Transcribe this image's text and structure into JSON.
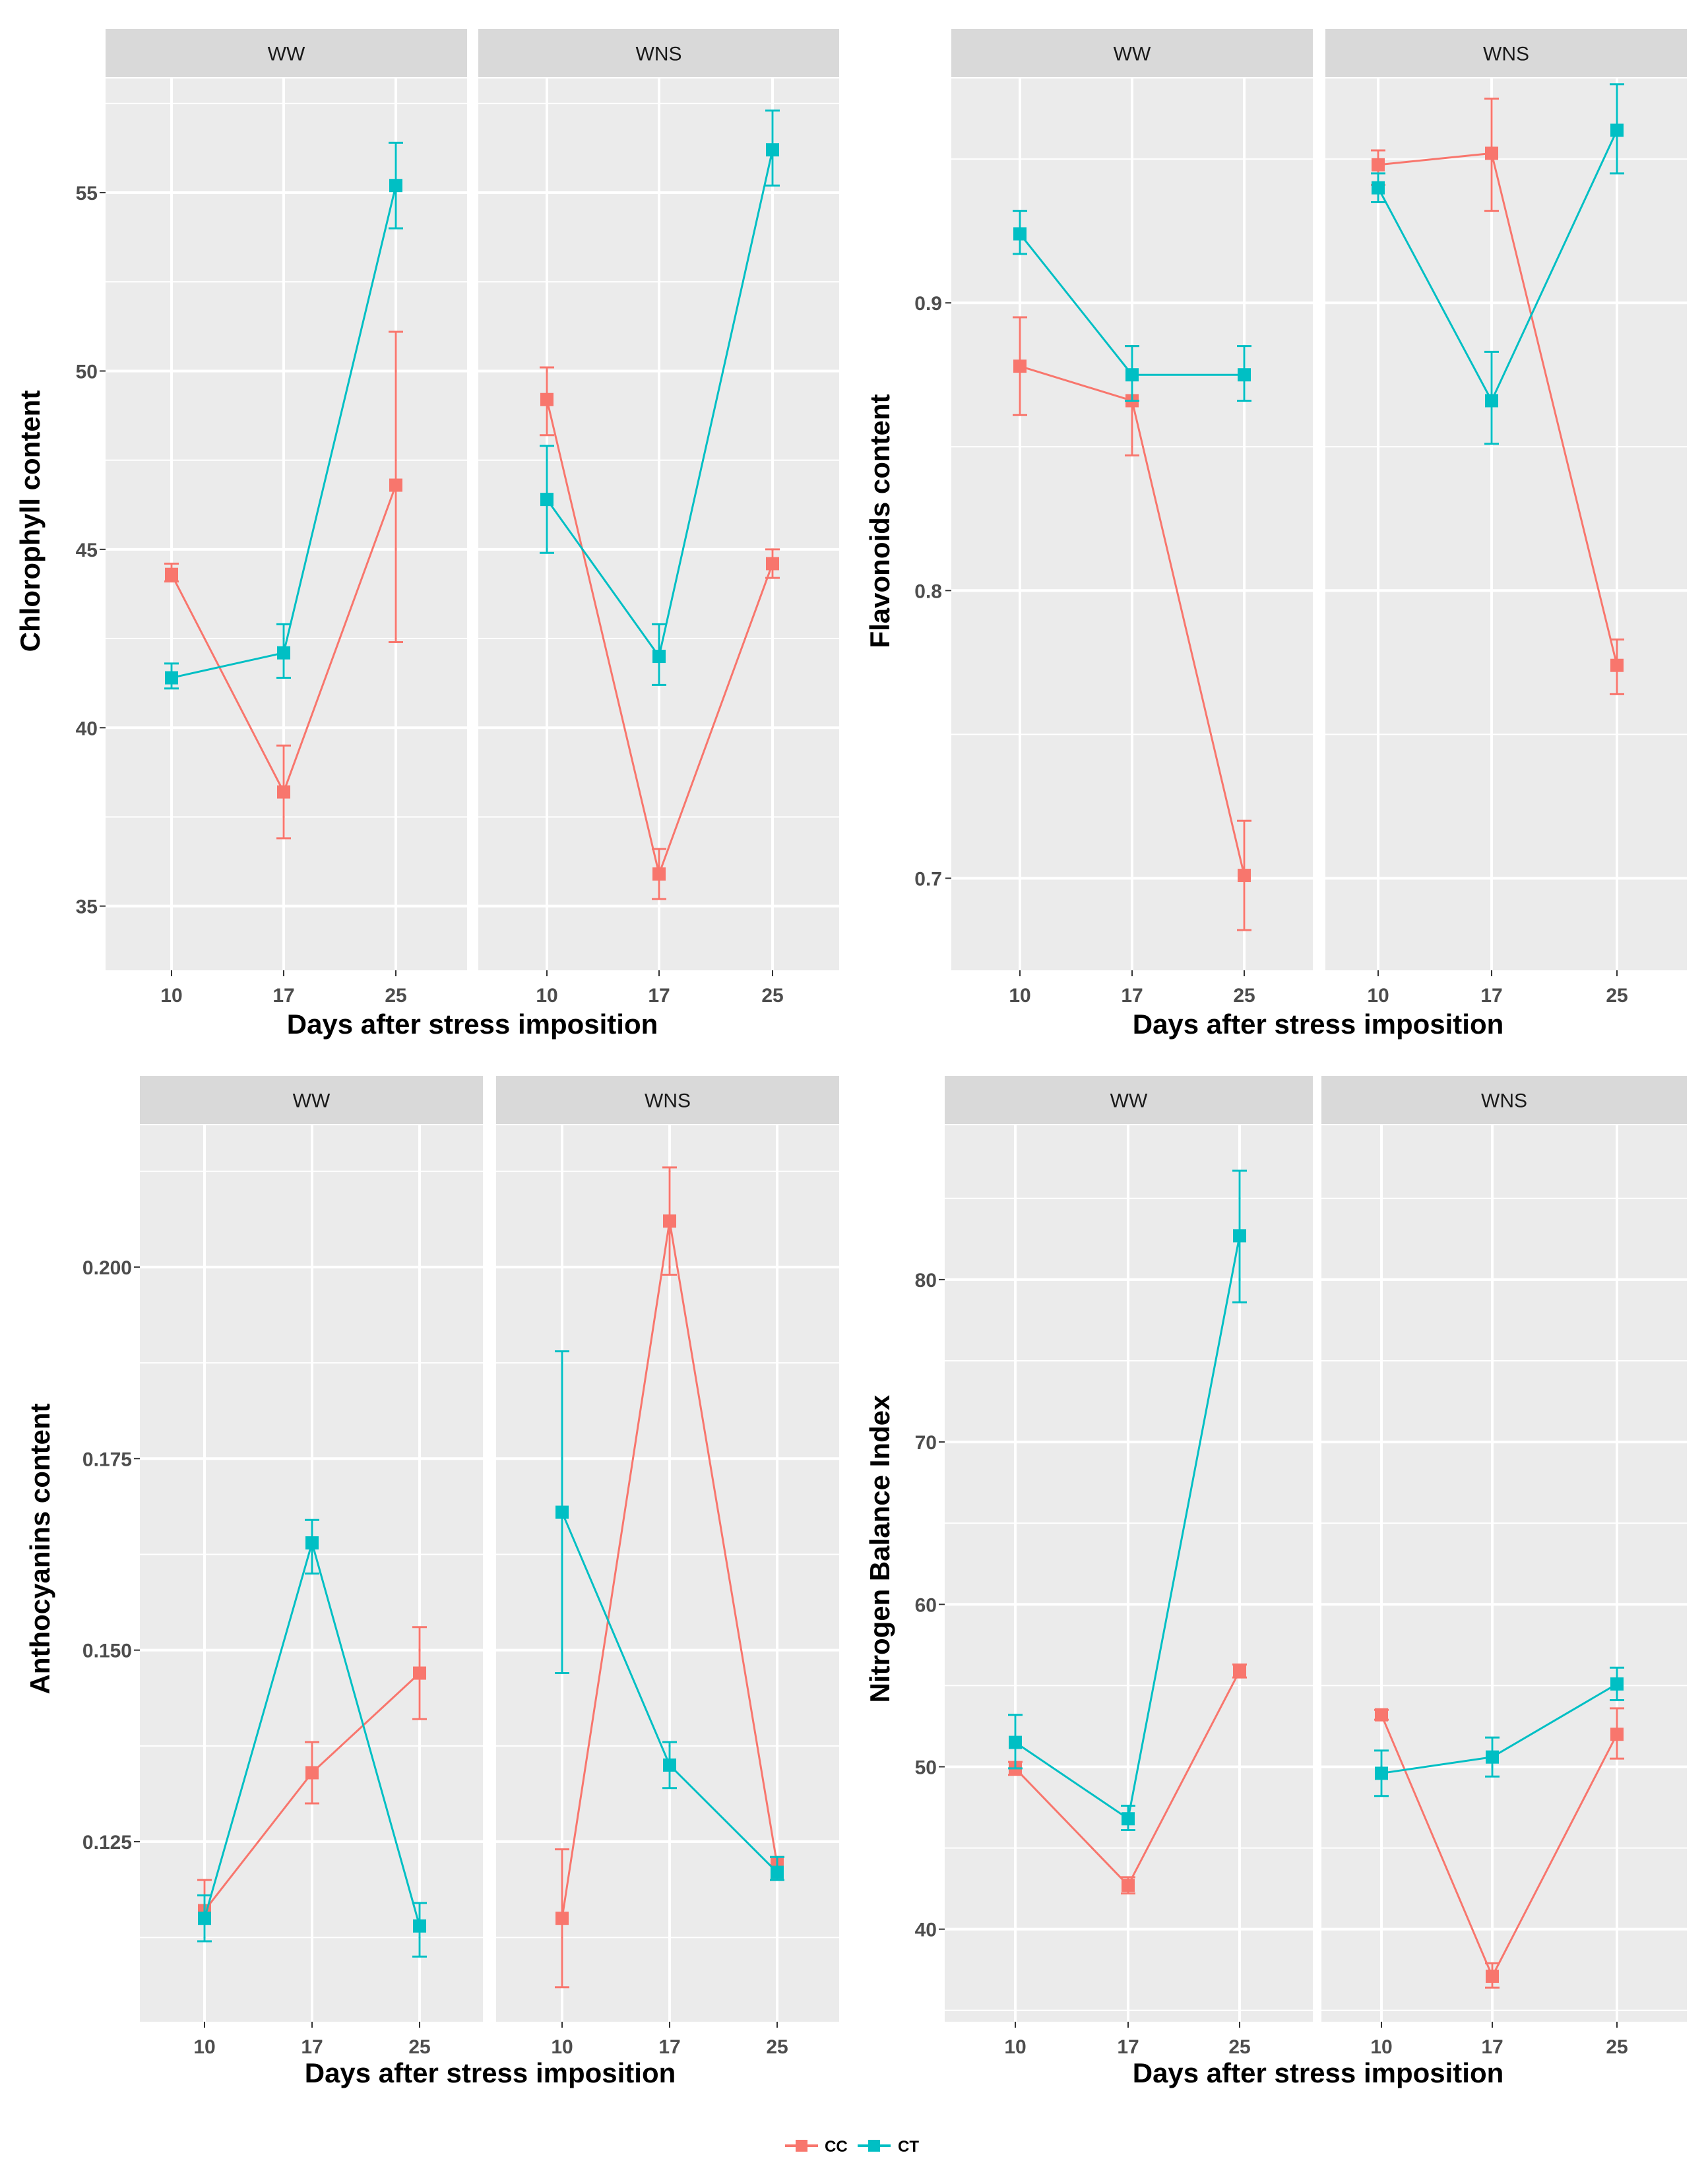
{
  "colors": {
    "CC": "#F8766D",
    "CT": "#00BFC4",
    "panel_bg": "#EBEBEB",
    "strip_bg": "#D9D9D9",
    "grid": "#FFFFFF"
  },
  "legend": {
    "items": [
      "CC",
      "CT"
    ]
  },
  "chart_data": [
    {
      "type": "line",
      "id": "chlorophyll",
      "ylabel": "Chlorophyll content",
      "xlabel": "Days after stress imposition",
      "ylim": [
        33.2,
        58.2
      ],
      "yticks": [
        35,
        40,
        45,
        50,
        55
      ],
      "x": [
        "10",
        "17",
        "25"
      ],
      "facets": [
        {
          "label": "WW",
          "series": [
            {
              "name": "CC",
              "values": [
                44.3,
                38.2,
                46.8
              ],
              "err_low": [
                44.1,
                36.9,
                42.4
              ],
              "err_high": [
                44.6,
                39.5,
                51.1
              ]
            },
            {
              "name": "CT",
              "values": [
                41.4,
                42.1,
                55.2
              ],
              "err_low": [
                41.1,
                41.4,
                54.0
              ],
              "err_high": [
                41.8,
                42.9,
                56.4
              ]
            }
          ]
        },
        {
          "label": "WNS",
          "series": [
            {
              "name": "CC",
              "values": [
                49.2,
                35.9,
                44.6
              ],
              "err_low": [
                48.2,
                35.2,
                44.2
              ],
              "err_high": [
                50.1,
                36.6,
                45.0
              ]
            },
            {
              "name": "CT",
              "values": [
                46.4,
                42.0,
                56.2
              ],
              "err_low": [
                44.9,
                41.2,
                55.2
              ],
              "err_high": [
                47.9,
                42.9,
                57.3
              ]
            }
          ]
        }
      ]
    },
    {
      "type": "line",
      "id": "flavonoids",
      "ylabel": "Flavonoids content",
      "xlabel": "Days after stress imposition",
      "ylim": [
        0.668,
        0.978
      ],
      "yticks": [
        0.7,
        0.8,
        0.9
      ],
      "x": [
        "10",
        "17",
        "25"
      ],
      "facets": [
        {
          "label": "WW",
          "series": [
            {
              "name": "CC",
              "values": [
                0.878,
                0.866,
                0.701
              ],
              "err_low": [
                0.861,
                0.847,
                0.682
              ],
              "err_high": [
                0.895,
                0.885,
                0.72
              ]
            },
            {
              "name": "CT",
              "values": [
                0.924,
                0.875,
                0.875
              ],
              "err_low": [
                0.917,
                0.866,
                0.866
              ],
              "err_high": [
                0.932,
                0.885,
                0.885
              ]
            }
          ]
        },
        {
          "label": "WNS",
          "series": [
            {
              "name": "CC",
              "values": [
                0.948,
                0.952,
                0.774
              ],
              "err_low": [
                0.941,
                0.932,
                0.764
              ],
              "err_high": [
                0.953,
                0.971,
                0.783
              ]
            },
            {
              "name": "CT",
              "values": [
                0.94,
                0.866,
                0.96
              ],
              "err_low": [
                0.935,
                0.851,
                0.945
              ],
              "err_high": [
                0.945,
                0.883,
                0.976
              ]
            }
          ]
        }
      ]
    },
    {
      "type": "line",
      "id": "anthocyanins",
      "ylabel": "Anthocyanins content",
      "xlabel": "Days after stress imposition",
      "ylim": [
        0.1015,
        0.2185
      ],
      "yticks": [
        0.125,
        0.15,
        0.175,
        0.2
      ],
      "ytick_labels": [
        "0.125",
        "0.150",
        "0.175",
        "0.200"
      ],
      "x": [
        "10",
        "17",
        "25"
      ],
      "facets": [
        {
          "label": "WW",
          "series": [
            {
              "name": "CC",
              "values": [
                0.116,
                0.134,
                0.147
              ],
              "err_low": [
                0.112,
                0.13,
                0.141
              ],
              "err_high": [
                0.12,
                0.138,
                0.153
              ]
            },
            {
              "name": "CT",
              "values": [
                0.115,
                0.164,
                0.114
              ],
              "err_low": [
                0.112,
                0.16,
                0.11
              ],
              "err_high": [
                0.118,
                0.167,
                0.117
              ]
            }
          ]
        },
        {
          "label": "WNS",
          "series": [
            {
              "name": "CC",
              "values": [
                0.115,
                0.206,
                0.122
              ],
              "err_low": [
                0.106,
                0.199,
                0.12
              ],
              "err_high": [
                0.124,
                0.213,
                0.123
              ]
            },
            {
              "name": "CT",
              "values": [
                0.168,
                0.135,
                0.121
              ],
              "err_low": [
                0.147,
                0.132,
                0.12
              ],
              "err_high": [
                0.189,
                0.138,
                0.123
              ]
            }
          ]
        }
      ]
    },
    {
      "type": "line",
      "id": "nbi",
      "ylabel": "Nitrogen Balance Index",
      "xlabel": "Days after stress imposition",
      "ylim": [
        34.3,
        89.5
      ],
      "yticks": [
        40,
        50,
        60,
        70,
        80
      ],
      "x": [
        "10",
        "17",
        "25"
      ],
      "facets": [
        {
          "label": "WW",
          "series": [
            {
              "name": "CC",
              "values": [
                49.9,
                42.7,
                55.9
              ],
              "err_low": [
                49.5,
                42.2,
                55.5
              ],
              "err_high": [
                50.3,
                43.2,
                56.3
              ]
            },
            {
              "name": "CT",
              "values": [
                51.5,
                46.8,
                82.7
              ],
              "err_low": [
                49.9,
                46.1,
                78.6
              ],
              "err_high": [
                53.2,
                47.6,
                86.7
              ]
            }
          ]
        },
        {
          "label": "WNS",
          "series": [
            {
              "name": "CC",
              "values": [
                53.2,
                37.1,
                52.0
              ],
              "err_low": [
                52.9,
                36.4,
                50.5
              ],
              "err_high": [
                53.5,
                37.9,
                53.6
              ]
            },
            {
              "name": "CT",
              "values": [
                49.6,
                50.6,
                55.1
              ],
              "err_low": [
                48.2,
                49.4,
                54.1
              ],
              "err_high": [
                51.0,
                51.8,
                56.1
              ]
            }
          ]
        }
      ]
    }
  ]
}
